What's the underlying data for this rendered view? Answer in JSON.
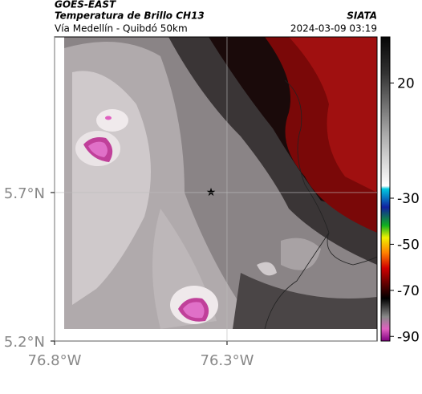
{
  "header": {
    "product": "GOES-EAST",
    "title": "Temperatura de Brillo CH13",
    "subtitle": "Vía Medellín - Quibdó 50km",
    "source": "SIATA",
    "timestamp": "2024-03-09 03:19"
  },
  "map": {
    "xlim": [
      -76.8,
      -75.865
    ],
    "ylim": [
      5.2,
      6.224
    ],
    "xticks": [
      {
        "value": -76.8,
        "label": "76.8°W"
      },
      {
        "value": -76.3,
        "label": "76.3°W"
      }
    ],
    "yticks": [
      {
        "value": 5.2,
        "label": "5.2°N"
      },
      {
        "value": 5.7,
        "label": "5.7°N"
      }
    ],
    "colorbar": {
      "lim": [
        -92,
        40
      ],
      "ticks": [
        20,
        -30,
        -50,
        -70,
        -90
      ]
    }
  }
}
